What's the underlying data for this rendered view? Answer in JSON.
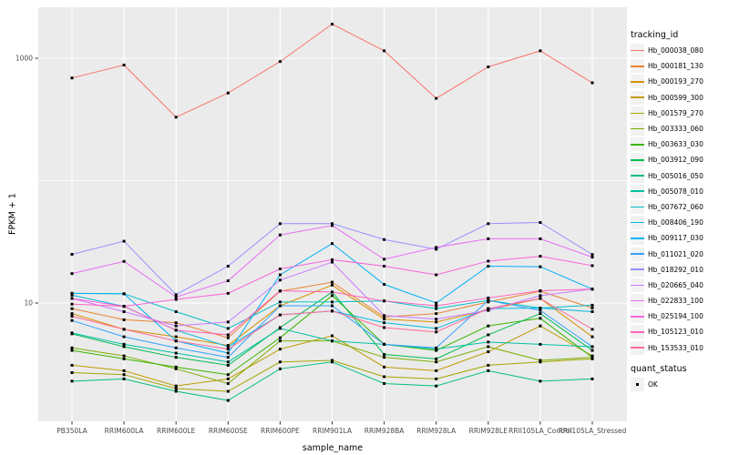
{
  "figure": {
    "background": "#FFFFFF",
    "panel_background": "#EBEBEB",
    "grid_color": "#FFFFFF",
    "tick_color": "#333333",
    "tick_label_color": "#4D4D4D",
    "point_color": "#000000"
  },
  "chart_data": {
    "type": "line",
    "title": "",
    "xlabel": "sample_name",
    "ylabel": "FPKM + 1",
    "y_scale": "log10",
    "y_tick_labels": [
      "1000",
      "10"
    ],
    "y_tick_values": [
      1000,
      10
    ],
    "y_minor_gridlines": [
      100
    ],
    "y_range_approx": [
      1.08,
      2600
    ],
    "grid": true,
    "legend_position": "right",
    "categories": [
      "PB350LA",
      "RRIM600LA",
      "RRIM600LE",
      "RRIM600SE",
      "RRIM600PE",
      "RRIM901LA",
      "RRIM928BA",
      "RRIM928LA",
      "RRIM928LE",
      "RRII105LA_Control",
      "RRII105LA_Stressed"
    ],
    "series": [
      {
        "name": "Hb_000038_080",
        "color": "#F8766D",
        "values": [
          690,
          880,
          330,
          520,
          940,
          1900,
          1150,
          470,
          850,
          1150,
          630
        ]
      },
      {
        "name": "Hb_000181_130",
        "color": "#EA8331",
        "values": [
          9.0,
          7.3,
          6.9,
          5.2,
          12.5,
          14.8,
          7.7,
          8.2,
          10.2,
          12.5,
          9.1
        ]
      },
      {
        "name": "Hb_000193_270",
        "color": "#D89000",
        "values": [
          8.2,
          6.1,
          5.3,
          4.5,
          9.5,
          14.0,
          7.4,
          7.0,
          8.8,
          10.9,
          5.3
        ]
      },
      {
        "name": "Hb_000599_300",
        "color": "#C09B00",
        "values": [
          3.1,
          2.8,
          2.1,
          2.4,
          4.2,
          5.4,
          3.0,
          2.8,
          4.0,
          6.5,
          3.7
        ]
      },
      {
        "name": "Hb_001579_270",
        "color": "#A3A500",
        "values": [
          2.7,
          2.6,
          2.0,
          1.9,
          3.3,
          3.4,
          2.5,
          2.4,
          3.1,
          3.3,
          3.5
        ]
      },
      {
        "name": "Hb_003333_060",
        "color": "#7CAE00",
        "values": [
          4.3,
          3.7,
          2.9,
          2.2,
          4.9,
          4.9,
          3.6,
          3.3,
          4.4,
          3.4,
          3.6
        ]
      },
      {
        "name": "Hb_003633_030",
        "color": "#39B600",
        "values": [
          4.1,
          3.5,
          3.0,
          2.6,
          5.2,
          11.5,
          4.6,
          4.1,
          6.5,
          7.5,
          3.6
        ]
      },
      {
        "name": "Hb_003912_090",
        "color": "#00BB4E",
        "values": [
          5.6,
          4.4,
          3.6,
          3.1,
          6.3,
          12.3,
          3.8,
          3.5,
          5.5,
          8.2,
          4.1
        ]
      },
      {
        "name": "Hb_005016_050",
        "color": "#00BF7D",
        "values": [
          2.3,
          2.4,
          1.9,
          1.6,
          2.9,
          3.3,
          2.2,
          2.1,
          2.8,
          2.3,
          2.4
        ]
      },
      {
        "name": "Hb_005078_010",
        "color": "#00C1A3",
        "values": [
          5.7,
          4.6,
          3.9,
          3.3,
          6.2,
          4.9,
          4.6,
          4.2,
          4.8,
          4.6,
          4.4
        ]
      },
      {
        "name": "Hb_007672_060",
        "color": "#00BFC4",
        "values": [
          12.0,
          11.9,
          8.5,
          6.2,
          10.2,
          10.2,
          10.4,
          9.0,
          10.5,
          9.1,
          9.6
        ]
      },
      {
        "name": "Hb_008406_190",
        "color": "#00BAE0",
        "values": [
          11.6,
          9.4,
          6.0,
          4.4,
          8.0,
          8.6,
          6.9,
          6.2,
          9.0,
          9.1,
          8.5
        ]
      },
      {
        "name": "Hb_009117_030",
        "color": "#00B0F6",
        "values": [
          12.0,
          11.9,
          4.9,
          3.9,
          17.0,
          30.6,
          14.2,
          10.0,
          20.0,
          19.8,
          13.0
        ]
      },
      {
        "name": "Hb_011021_020",
        "color": "#35A2FF",
        "values": [
          7.2,
          5.3,
          4.3,
          3.6,
          9.5,
          9.5,
          4.6,
          4.3,
          10.5,
          8.7,
          4.4
        ]
      },
      {
        "name": "Hb_018292_010",
        "color": "#9590FF",
        "values": [
          25,
          32,
          11.7,
          20,
          44.5,
          44.5,
          33,
          27.5,
          44.5,
          45.5,
          24.9
        ]
      },
      {
        "name": "Hb_020665_040",
        "color": "#C77CFF",
        "values": [
          10.9,
          8.5,
          6.5,
          7.0,
          15.4,
          21.6,
          7.9,
          7.4,
          8.7,
          11.5,
          13.0
        ]
      },
      {
        "name": "Hb_022833_100",
        "color": "#E76BF3",
        "values": [
          17.4,
          21.9,
          11.2,
          15.2,
          36,
          43,
          22.8,
          28.5,
          33.5,
          33.5,
          23.7
        ]
      },
      {
        "name": "Hb_025194_100",
        "color": "#FA62DB",
        "values": [
          10.9,
          9.4,
          10.7,
          12.0,
          19.0,
          22.6,
          20.0,
          17.0,
          22.0,
          24.1,
          20.2
        ]
      },
      {
        "name": "Hb_105123_010",
        "color": "#FF62BC",
        "values": [
          9.8,
          9.4,
          6.0,
          5.5,
          12.6,
          12.3,
          10.4,
          9.5,
          11.0,
          12.6,
          13.0
        ]
      },
      {
        "name": "Hb_153533_010",
        "color": "#FF6A98",
        "values": [
          7.8,
          6.1,
          4.9,
          4.2,
          8.0,
          8.6,
          6.3,
          5.8,
          9.0,
          10.9,
          6.1
        ]
      }
    ]
  },
  "legend": {
    "tracking_title": "tracking_id",
    "quant_title": "quant_status",
    "quant_items": [
      {
        "label": "OK"
      }
    ]
  }
}
